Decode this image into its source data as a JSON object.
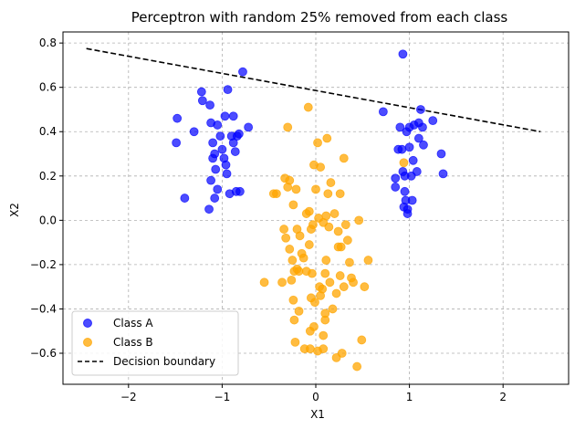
{
  "chart_data": {
    "type": "scatter",
    "title": "Perceptron with random 25% removed from each class",
    "xlabel": "X1",
    "ylabel": "X2",
    "xlim": [
      -2.7,
      2.7
    ],
    "ylim": [
      -0.74,
      0.85
    ],
    "xticks": [
      -2,
      -1,
      0,
      1,
      2
    ],
    "yticks": [
      -0.6,
      -0.4,
      -0.2,
      0.0,
      0.2,
      0.4,
      0.6,
      0.8
    ],
    "xtick_labels": [
      "−2",
      "−1",
      "0",
      "1",
      "2"
    ],
    "ytick_labels": [
      "−0.6",
      "−0.4",
      "−0.2",
      "0.0",
      "0.2",
      "0.4",
      "0.6",
      "0.8"
    ],
    "grid": true,
    "legend_position": "lower-left",
    "series": [
      {
        "name": "Class A",
        "color": "#0000ff",
        "points": [
          [
            -1.48,
            0.46
          ],
          [
            -1.49,
            0.35
          ],
          [
            -1.4,
            0.1
          ],
          [
            -1.3,
            0.4
          ],
          [
            -1.22,
            0.58
          ],
          [
            -1.21,
            0.54
          ],
          [
            -1.13,
            0.52
          ],
          [
            -1.12,
            0.44
          ],
          [
            -1.1,
            0.35
          ],
          [
            -1.08,
            0.3
          ],
          [
            -1.1,
            0.28
          ],
          [
            -1.07,
            0.23
          ],
          [
            -1.12,
            0.18
          ],
          [
            -1.08,
            0.1
          ],
          [
            -1.14,
            0.05
          ],
          [
            -1.05,
            0.43
          ],
          [
            -1.02,
            0.38
          ],
          [
            -1.0,
            0.32
          ],
          [
            -0.98,
            0.28
          ],
          [
            -1.05,
            0.14
          ],
          [
            -0.97,
            0.47
          ],
          [
            -0.94,
            0.59
          ],
          [
            -0.96,
            0.25
          ],
          [
            -0.95,
            0.21
          ],
          [
            -0.92,
            0.12
          ],
          [
            -0.9,
            0.38
          ],
          [
            -0.88,
            0.35
          ],
          [
            -0.88,
            0.47
          ],
          [
            -0.86,
            0.31
          ],
          [
            -0.84,
            0.38
          ],
          [
            -0.82,
            0.39
          ],
          [
            -0.85,
            0.13
          ],
          [
            -0.81,
            0.13
          ],
          [
            -0.78,
            0.67
          ],
          [
            -0.72,
            0.42
          ],
          [
            0.72,
            0.49
          ],
          [
            0.85,
            0.15
          ],
          [
            0.85,
            0.19
          ],
          [
            0.88,
            0.32
          ],
          [
            0.9,
            0.42
          ],
          [
            0.92,
            0.32
          ],
          [
            0.93,
            0.22
          ],
          [
            0.93,
            0.75
          ],
          [
            0.94,
            0.06
          ],
          [
            0.95,
            0.13
          ],
          [
            0.96,
            0.09
          ],
          [
            0.97,
            0.4
          ],
          [
            0.98,
            0.05
          ],
          [
            0.98,
            0.03
          ],
          [
            1.0,
            0.42
          ],
          [
            1.02,
            0.2
          ],
          [
            1.03,
            0.09
          ],
          [
            1.04,
            0.27
          ],
          [
            1.05,
            0.43
          ],
          [
            1.08,
            0.22
          ],
          [
            1.1,
            0.37
          ],
          [
            1.12,
            0.5
          ],
          [
            1.14,
            0.42
          ],
          [
            1.15,
            0.34
          ],
          [
            1.25,
            0.45
          ],
          [
            1.34,
            0.3
          ],
          [
            1.36,
            0.21
          ],
          [
            1.0,
            0.33
          ],
          [
            1.1,
            0.44
          ],
          [
            0.95,
            0.2
          ]
        ]
      },
      {
        "name": "Class B",
        "color": "#ffa500",
        "points": [
          [
            -0.55,
            -0.28
          ],
          [
            -0.45,
            0.12
          ],
          [
            -0.42,
            0.12
          ],
          [
            -0.36,
            -0.28
          ],
          [
            -0.34,
            -0.04
          ],
          [
            -0.33,
            0.19
          ],
          [
            -0.32,
            -0.08
          ],
          [
            -0.3,
            0.42
          ],
          [
            -0.3,
            0.15
          ],
          [
            -0.28,
            -0.13
          ],
          [
            -0.28,
            0.18
          ],
          [
            -0.26,
            -0.27
          ],
          [
            -0.24,
            0.07
          ],
          [
            -0.25,
            -0.18
          ],
          [
            -0.24,
            -0.36
          ],
          [
            -0.23,
            -0.45
          ],
          [
            -0.23,
            -0.23
          ],
          [
            -0.22,
            -0.55
          ],
          [
            -0.21,
            0.14
          ],
          [
            -0.2,
            -0.04
          ],
          [
            -0.2,
            -0.22
          ],
          [
            -0.18,
            -0.41
          ],
          [
            -0.18,
            -0.23
          ],
          [
            -0.17,
            -0.07
          ],
          [
            -0.15,
            -0.15
          ],
          [
            -0.13,
            -0.17
          ],
          [
            -0.12,
            -0.58
          ],
          [
            -0.1,
            -0.23
          ],
          [
            -0.1,
            0.03
          ],
          [
            -0.08,
            0.51
          ],
          [
            -0.07,
            -0.11
          ],
          [
            -0.07,
            0.04
          ],
          [
            -0.06,
            -0.5
          ],
          [
            -0.06,
            -0.58
          ],
          [
            -0.05,
            -0.04
          ],
          [
            -0.05,
            -0.35
          ],
          [
            -0.04,
            -0.24
          ],
          [
            -0.03,
            -0.02
          ],
          [
            -0.02,
            -0.48
          ],
          [
            -0.02,
            0.25
          ],
          [
            0.0,
            0.14
          ],
          [
            0.02,
            0.35
          ],
          [
            0.02,
            -0.59
          ],
          [
            0.03,
            0.01
          ],
          [
            0.04,
            -0.3
          ],
          [
            0.05,
            0.24
          ],
          [
            0.05,
            -0.34
          ],
          [
            0.07,
            -0.31
          ],
          [
            0.08,
            -0.58
          ],
          [
            0.08,
            -0.01
          ],
          [
            0.1,
            -0.42
          ],
          [
            0.1,
            -0.24
          ],
          [
            0.1,
            -0.45
          ],
          [
            0.11,
            0.02
          ],
          [
            0.12,
            0.37
          ],
          [
            0.13,
            0.12
          ],
          [
            0.14,
            -0.03
          ],
          [
            0.15,
            -0.28
          ],
          [
            0.16,
            0.17
          ],
          [
            0.18,
            -0.4
          ],
          [
            0.2,
            0.03
          ],
          [
            0.22,
            -0.33
          ],
          [
            0.22,
            -0.62
          ],
          [
            0.24,
            -0.12
          ],
          [
            0.24,
            -0.05
          ],
          [
            0.26,
            -0.25
          ],
          [
            0.26,
            0.12
          ],
          [
            0.27,
            -0.12
          ],
          [
            0.28,
            -0.6
          ],
          [
            0.3,
            0.28
          ],
          [
            0.3,
            -0.3
          ],
          [
            0.32,
            -0.02
          ],
          [
            0.34,
            -0.09
          ],
          [
            0.36,
            -0.19
          ],
          [
            0.38,
            -0.26
          ],
          [
            0.4,
            -0.28
          ],
          [
            0.44,
            -0.66
          ],
          [
            0.46,
            0.0
          ],
          [
            0.49,
            -0.54
          ],
          [
            0.52,
            -0.3
          ],
          [
            0.56,
            -0.18
          ],
          [
            0.94,
            0.26
          ],
          [
            -0.01,
            -0.37
          ],
          [
            0.08,
            -0.52
          ],
          [
            0.11,
            -0.18
          ]
        ]
      }
    ],
    "decision_boundary": {
      "name": "Decision boundary",
      "color": "#000000",
      "style": "dashed",
      "x": [
        -2.45,
        2.4
      ],
      "y": [
        0.775,
        0.4
      ]
    }
  }
}
